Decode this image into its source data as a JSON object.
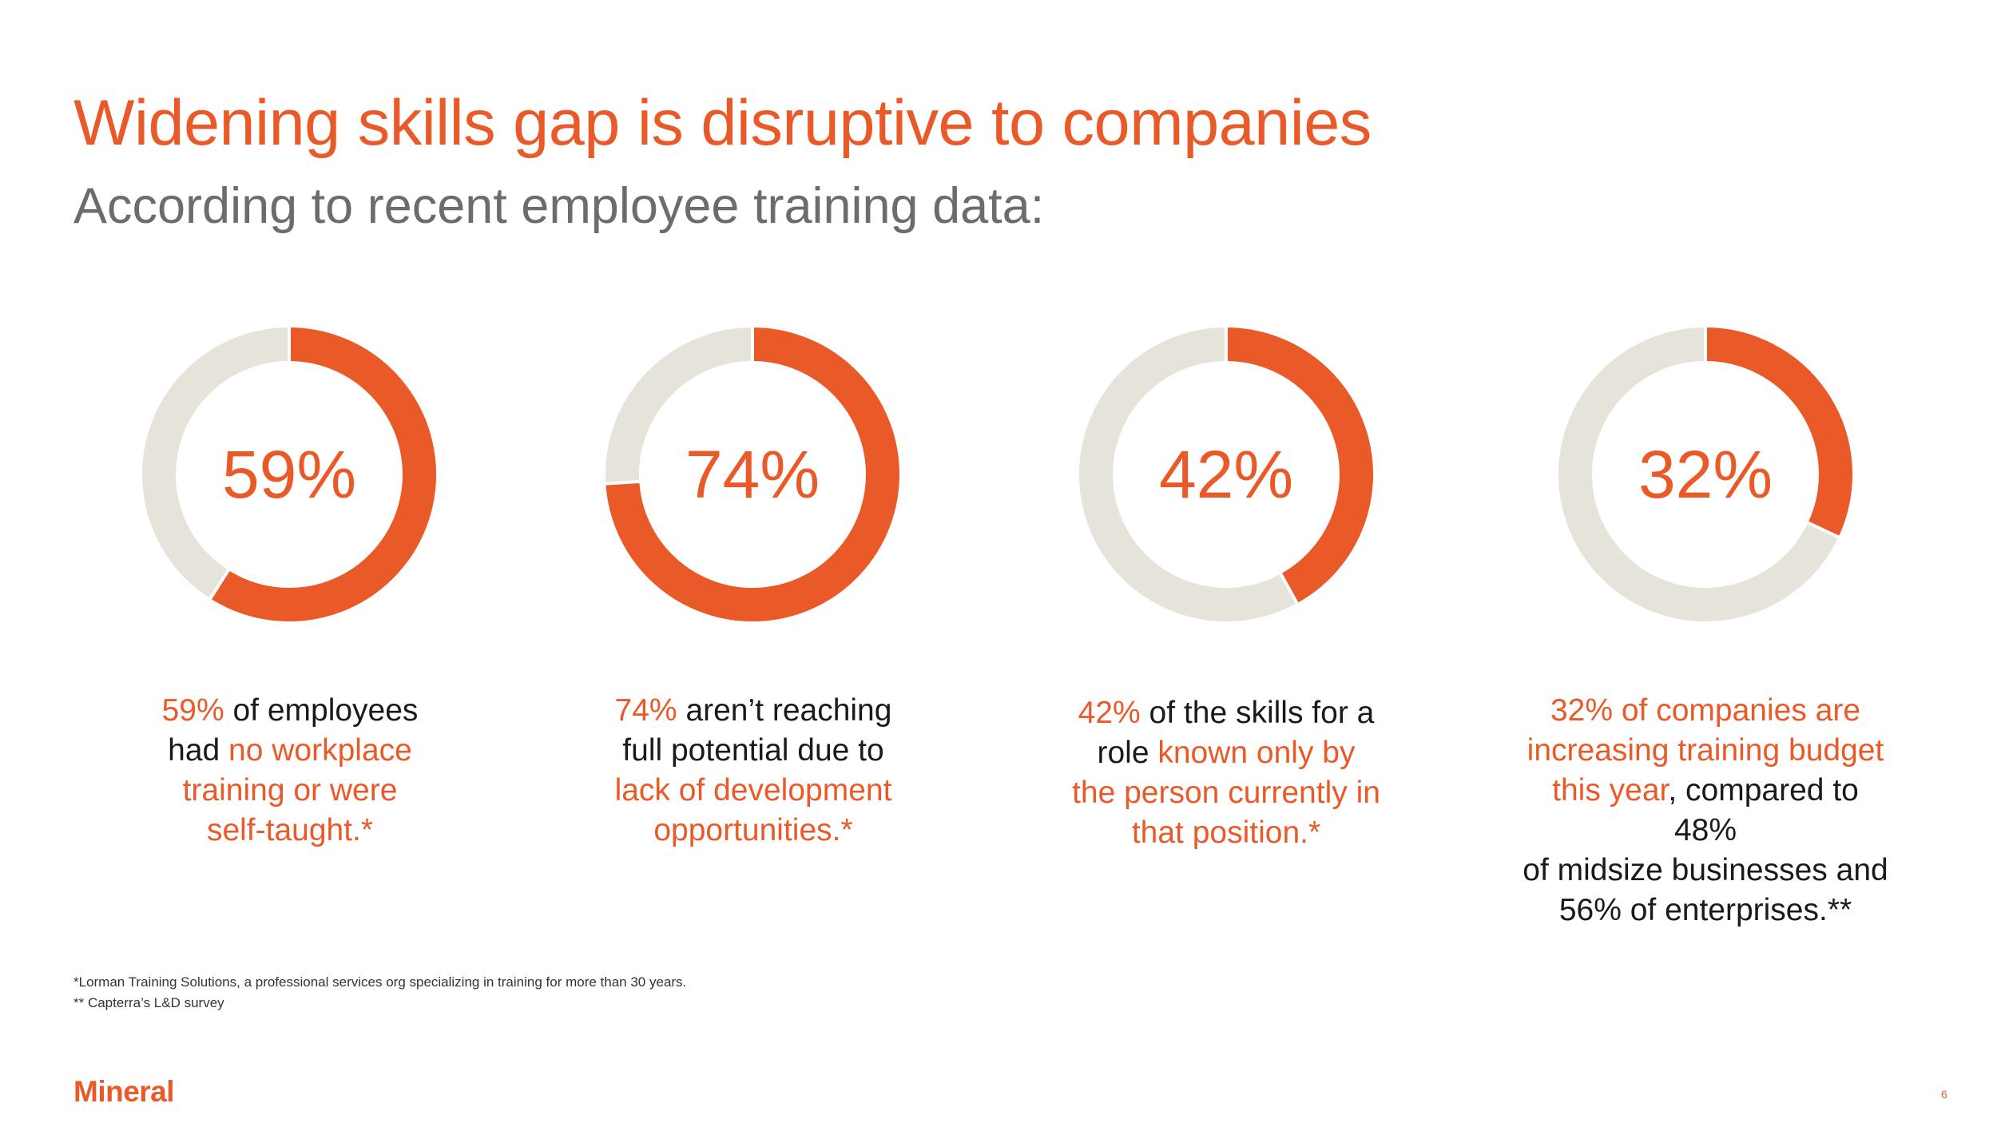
{
  "slide": {
    "title": "Widening skills gap is disruptive to companies",
    "subtitle": "According to recent employee training data:"
  },
  "colors": {
    "accent": "#ea5a28",
    "track": "#e6e3da",
    "text": "#1a1a1a"
  },
  "chart_data": [
    {
      "type": "pie",
      "style": "donut",
      "value": 59,
      "label": "59%"
    },
    {
      "type": "pie",
      "style": "donut",
      "value": 74,
      "label": "74%"
    },
    {
      "type": "pie",
      "style": "donut",
      "value": 42,
      "label": "42%"
    },
    {
      "type": "pie",
      "style": "donut",
      "value": 32,
      "label": "32%"
    }
  ],
  "captions": [
    {
      "lines": [
        [
          {
            "t": "59%",
            "hl": true
          },
          {
            "t": " of employees",
            "hl": false
          }
        ],
        [
          {
            "t": "had ",
            "hl": false
          },
          {
            "t": "no workplace",
            "hl": true
          }
        ],
        [
          {
            "t": "training or were",
            "hl": true
          }
        ],
        [
          {
            "t": "self-taught.*",
            "hl": true
          }
        ]
      ]
    },
    {
      "lines": [
        [
          {
            "t": "74%",
            "hl": true
          },
          {
            "t": " aren’t reaching",
            "hl": false
          }
        ],
        [
          {
            "t": "full potential due to",
            "hl": false
          }
        ],
        [
          {
            "t": "lack of development",
            "hl": true
          }
        ],
        [
          {
            "t": "opportunities.*",
            "hl": true
          }
        ]
      ]
    },
    {
      "lines": [
        [
          {
            "t": "42%",
            "hl": true
          },
          {
            "t": " of the skills for a",
            "hl": false
          }
        ],
        [
          {
            "t": "role ",
            "hl": false
          },
          {
            "t": "known only by",
            "hl": true
          }
        ],
        [
          {
            "t": "the person currently in",
            "hl": true
          }
        ],
        [
          {
            "t": "that position.*",
            "hl": true
          }
        ]
      ]
    },
    {
      "lines": [
        [
          {
            "t": "32% of companies are",
            "hl": true
          }
        ],
        [
          {
            "t": "increasing training budget",
            "hl": true
          }
        ],
        [
          {
            "t": "this year",
            "hl": true
          },
          {
            "t": ", compared to 48%",
            "hl": false
          }
        ],
        [
          {
            "t": "of midsize businesses and",
            "hl": false
          }
        ],
        [
          {
            "t": "56% of enterprises.**",
            "hl": false
          }
        ]
      ]
    }
  ],
  "footnotes": {
    "first": "*Lorman Training Solutions, a professional services org specializing in training for more than 30 years.",
    "second": "** Capterra’s L&D survey"
  },
  "footer": {
    "logo": "Mineral",
    "page_number": "6"
  }
}
